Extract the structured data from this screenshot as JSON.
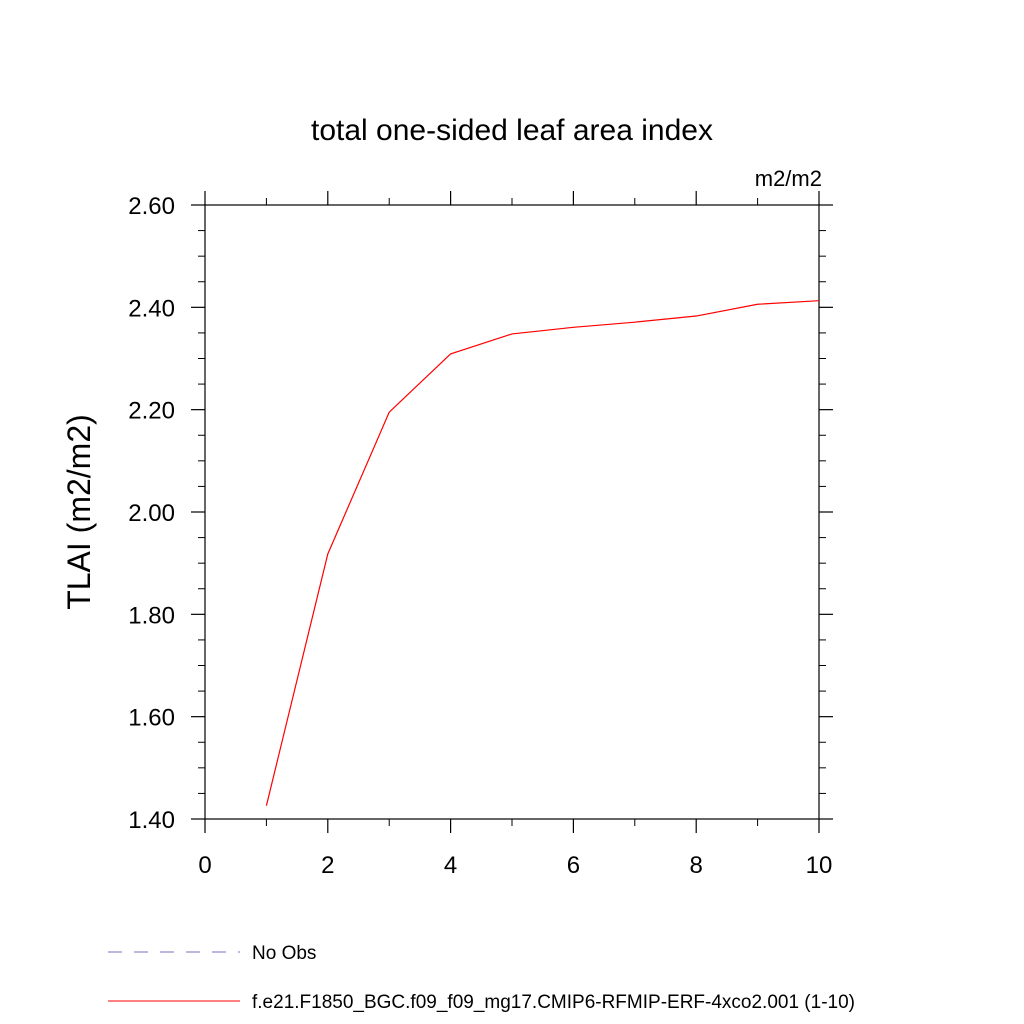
{
  "chart_data": {
    "type": "line",
    "title": "total one-sided leaf area index",
    "units_label": "m2/m2",
    "ylabel": "TLAI  (m2/m2)",
    "xlabel": "",
    "xlim": [
      0,
      10
    ],
    "ylim": [
      1.4,
      2.6
    ],
    "x_ticks": [
      "0",
      "2",
      "4",
      "6",
      "8",
      "10"
    ],
    "y_ticks": [
      "1.40",
      "1.60",
      "1.80",
      "2.00",
      "2.20",
      "2.40",
      "2.60"
    ],
    "grid": false,
    "series": [
      {
        "name": "f.e21.F1850_BGC.f09_f09_mg17.CMIP6-RFMIP-ERF-4xco2.001 (1-10)",
        "color": "#ff0000",
        "x": [
          1,
          2,
          3,
          4,
          5,
          6,
          7,
          8,
          9,
          10
        ],
        "y": [
          1.426,
          1.918,
          2.195,
          2.309,
          2.348,
          2.361,
          2.371,
          2.383,
          2.406,
          2.413
        ]
      }
    ],
    "legend": [
      {
        "label": "No Obs",
        "color": "#7a6fc0",
        "style": "dashed"
      },
      {
        "label": "f.e21.F1850_BGC.f09_f09_mg17.CMIP6-RFMIP-ERF-4xco2.001 (1-10)",
        "color": "#ff0000",
        "style": "solid"
      }
    ]
  }
}
